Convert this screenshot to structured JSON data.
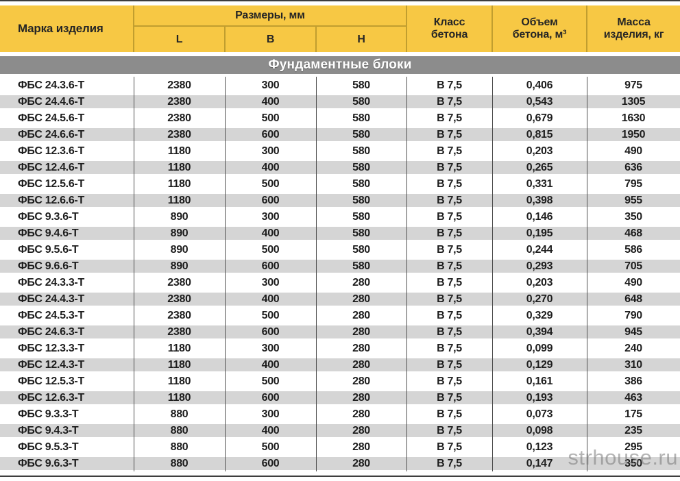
{
  "page": {
    "watermark": "strhouse.ru"
  },
  "colors": {
    "header_yellow": "#F7C844",
    "header_divider_olive": "#C19E2F",
    "section_band_gray": "#8C8C8C",
    "row_stripe_gray": "#D5D5D5",
    "grid_line_dark": "#4C4C4C",
    "frame_line": "#3E3E3E",
    "text_dark": "#1D1D1D",
    "band_text": "#FFFFFF"
  },
  "table": {
    "section_title": "Фундаментные блоки",
    "headers": {
      "mark": "Марка изделия",
      "dimensions_group": "Размеры, мм",
      "dim_l": "L",
      "dim_b": "B",
      "dim_h": "H",
      "concrete_class": "Класс\nбетона",
      "concrete_volume": "Объем\nбетона, м³",
      "product_mass": "Масса\nизделия, кг"
    },
    "column_keys": [
      "mark",
      "length-l",
      "width-b",
      "height-h",
      "concrete-class",
      "concrete-volume",
      "mass"
    ],
    "rows": [
      [
        "ФБС 24.3.6-Т",
        "2380",
        "300",
        "580",
        "В 7,5",
        "0,406",
        "975"
      ],
      [
        "ФБС 24.4.6-Т",
        "2380",
        "400",
        "580",
        "В 7,5",
        "0,543",
        "1305"
      ],
      [
        "ФБС 24.5.6-Т",
        "2380",
        "500",
        "580",
        "В 7,5",
        "0,679",
        "1630"
      ],
      [
        "ФБС 24.6.6-Т",
        "2380",
        "600",
        "580",
        "В 7,5",
        "0,815",
        "1950"
      ],
      [
        "ФБС 12.3.6-Т",
        "1180",
        "300",
        "580",
        "В 7,5",
        "0,203",
        "490"
      ],
      [
        "ФБС 12.4.6-Т",
        "1180",
        "400",
        "580",
        "В 7,5",
        "0,265",
        "636"
      ],
      [
        "ФБС 12.5.6-Т",
        "1180",
        "500",
        "580",
        "В 7,5",
        "0,331",
        "795"
      ],
      [
        "ФБС 12.6.6-Т",
        "1180",
        "600",
        "580",
        "В 7,5",
        "0,398",
        "955"
      ],
      [
        "ФБС 9.3.6-Т",
        "890",
        "300",
        "580",
        "В 7,5",
        "0,146",
        "350"
      ],
      [
        "ФБС 9.4.6-Т",
        "890",
        "400",
        "580",
        "В 7,5",
        "0,195",
        "468"
      ],
      [
        "ФБС 9.5.6-Т",
        "890",
        "500",
        "580",
        "В 7,5",
        "0,244",
        "586"
      ],
      [
        "ФБС 9.6.6-Т",
        "890",
        "600",
        "580",
        "В 7,5",
        "0,293",
        "705"
      ],
      [
        "ФБС 24.3.3-Т",
        "2380",
        "300",
        "280",
        "В 7,5",
        "0,203",
        "490"
      ],
      [
        "ФБС 24.4.3-Т",
        "2380",
        "400",
        "280",
        "В 7,5",
        "0,270",
        "648"
      ],
      [
        "ФБС 24.5.3-Т",
        "2380",
        "500",
        "280",
        "В 7,5",
        "0,329",
        "790"
      ],
      [
        "ФБС 24.6.3-Т",
        "2380",
        "600",
        "280",
        "В 7,5",
        "0,394",
        "945"
      ],
      [
        "ФБС 12.3.3-Т",
        "1180",
        "300",
        "280",
        "В 7,5",
        "0,099",
        "240"
      ],
      [
        "ФБС 12.4.3-Т",
        "1180",
        "400",
        "280",
        "В 7,5",
        "0,129",
        "310"
      ],
      [
        "ФБС 12.5.3-Т",
        "1180",
        "500",
        "280",
        "В 7,5",
        "0,161",
        "386"
      ],
      [
        "ФБС 12.6.3-Т",
        "1180",
        "600",
        "280",
        "В 7,5",
        "0,193",
        "463"
      ],
      [
        "ФБС 9.3.3-Т",
        "880",
        "300",
        "280",
        "В 7,5",
        "0,073",
        "175"
      ],
      [
        "ФБС 9.4.3-Т",
        "880",
        "400",
        "280",
        "В 7,5",
        "0,098",
        "235"
      ],
      [
        "ФБС 9.5.3-Т",
        "880",
        "500",
        "280",
        "В 7,5",
        "0,123",
        "295"
      ],
      [
        "ФБС 9.6.3-Т",
        "880",
        "600",
        "280",
        "В 7,5",
        "0,147",
        "350"
      ]
    ]
  }
}
